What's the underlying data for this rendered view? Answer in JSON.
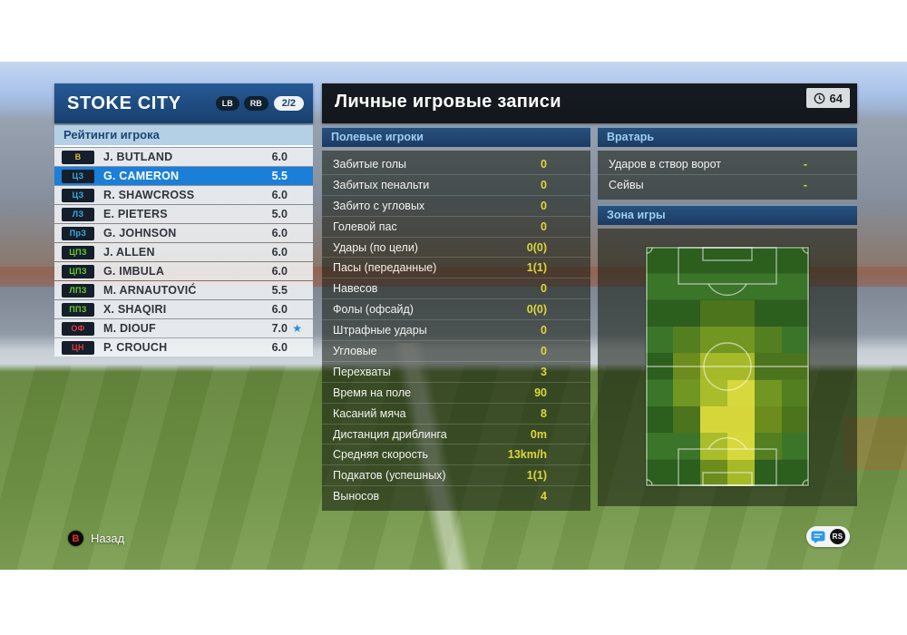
{
  "team_panel": {
    "team_name": "STOKE CITY",
    "badge_lb": "LB",
    "badge_rb": "RB",
    "badge_page": "2/2",
    "subheader": "Рейтинги игрока",
    "players": [
      {
        "pos": "В",
        "group": "gk",
        "name": "J. BUTLAND",
        "rating": "6.0",
        "selected": false,
        "star": false
      },
      {
        "pos": "ЦЗ",
        "group": "df",
        "name": "G. CAMERON",
        "rating": "5.5",
        "selected": true,
        "star": false
      },
      {
        "pos": "ЦЗ",
        "group": "df",
        "name": "R. SHAWCROSS",
        "rating": "6.0",
        "selected": false,
        "star": false
      },
      {
        "pos": "ЛЗ",
        "group": "df",
        "name": "E. PIETERS",
        "rating": "5.0",
        "selected": false,
        "star": false
      },
      {
        "pos": "ПрЗ",
        "group": "df",
        "name": "G. JOHNSON",
        "rating": "6.0",
        "selected": false,
        "star": false
      },
      {
        "pos": "ЦПЗ",
        "group": "mf",
        "name": "J. ALLEN",
        "rating": "6.0",
        "selected": false,
        "star": false
      },
      {
        "pos": "ЦПЗ",
        "group": "mf",
        "name": "G. IMBULA",
        "rating": "6.0",
        "selected": false,
        "star": false
      },
      {
        "pos": "ЛПЗ",
        "group": "mf",
        "name": "M. ARNAUTOVIĆ",
        "rating": "5.5",
        "selected": false,
        "star": false
      },
      {
        "pos": "ППЗ",
        "group": "mf",
        "name": "X. SHAQIRI",
        "rating": "6.0",
        "selected": false,
        "star": false
      },
      {
        "pos": "ОФ",
        "group": "fw",
        "name": "M. DIOUF",
        "rating": "7.0",
        "selected": false,
        "star": true
      },
      {
        "pos": "ЦН",
        "group": "fw",
        "name": "P. CROUCH",
        "rating": "6.0",
        "selected": false,
        "star": false
      }
    ],
    "star_glyph": "★"
  },
  "records_panel": {
    "title": "Личные игровые записи",
    "match_time": "64",
    "outfield": {
      "header": "Полевые игроки",
      "stats": [
        {
          "label": "Забитые голы",
          "value": "0"
        },
        {
          "label": "Забитых пенальти",
          "value": "0"
        },
        {
          "label": "Забито с угловых",
          "value": "0"
        },
        {
          "label": "Голевой пас",
          "value": "0"
        },
        {
          "label": "Удары (по цели)",
          "value": "0(0)"
        },
        {
          "label": "Пасы (переданные)",
          "value": "1(1)"
        },
        {
          "label": "Навесов",
          "value": "0"
        },
        {
          "label": "Фолы (офсайд)",
          "value": "0(0)"
        },
        {
          "label": "Штрафные удары",
          "value": "0"
        },
        {
          "label": "Угловые",
          "value": "0"
        },
        {
          "label": "Перехваты",
          "value": "3"
        },
        {
          "label": "Время на поле",
          "value": "90"
        },
        {
          "label": "Касаний мяча",
          "value": "8"
        },
        {
          "label": "Дистанция дриблинга",
          "value": "0m"
        },
        {
          "label": "Средняя скорость",
          "value": "13km/h"
        },
        {
          "label": "Подкатов (успешных)",
          "value": "1(1)"
        },
        {
          "label": "Выносов",
          "value": "4"
        }
      ]
    },
    "goalkeeper": {
      "header": "Вратарь",
      "stats": [
        {
          "label": "Ударов в створ ворот",
          "value": "-"
        },
        {
          "label": "Сейвы",
          "value": "-"
        }
      ]
    },
    "zone": {
      "header": "Зона игры",
      "heatmap": {
        "rows": 9,
        "cols": 6,
        "grid": [
          [
            0,
            0,
            0,
            0,
            0,
            0
          ],
          [
            0,
            0,
            0,
            0,
            0,
            0
          ],
          [
            0,
            0,
            1,
            1,
            0,
            0
          ],
          [
            0,
            1,
            2,
            2,
            1,
            0
          ],
          [
            0,
            2,
            3,
            3,
            1,
            1
          ],
          [
            0,
            2,
            3,
            4,
            2,
            1
          ],
          [
            0,
            1,
            4,
            4,
            2,
            1
          ],
          [
            0,
            0,
            3,
            4,
            1,
            0
          ],
          [
            0,
            0,
            2,
            3,
            0,
            0
          ]
        ],
        "colors": [
          "transparent",
          "rgba(108,138,26,0.5)",
          "rgba(152,172,30,0.6)",
          "rgba(197,207,42,0.8)",
          "rgba(229,225,62,0.92)"
        ]
      }
    }
  },
  "footer": {
    "back_label": "Назад",
    "b_button_glyph": "B",
    "rs_button_glyph": "RS"
  },
  "colors": {
    "selection_blue": "#1b7fd8",
    "header_navy": "#1b3c63",
    "value_yellow": "#dcd63c",
    "team_header_blue": "#1d4a7c",
    "subheader_light_blue": "#b4d0e4",
    "star_blue": "#1f8de4"
  }
}
